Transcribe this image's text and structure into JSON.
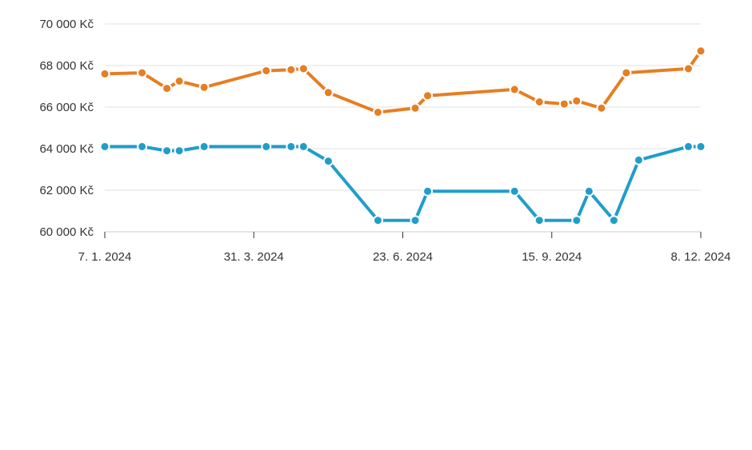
{
  "chart_data": {
    "type": "line",
    "title": "",
    "xlabel": "",
    "ylabel": "",
    "ylim": [
      60000,
      70000
    ],
    "y_ticks": [
      60000,
      62000,
      64000,
      66000,
      68000,
      70000
    ],
    "y_tick_labels": [
      "60 000 Kč",
      "62 000 Kč",
      "64 000 Kč",
      "66 000 Kč",
      "68 000 Kč",
      "70 000 Kč"
    ],
    "xlim": [
      "2024-01-07",
      "2024-12-08"
    ],
    "x_ticks": [
      "2024-01-07",
      "2024-03-31",
      "2024-06-23",
      "2024-09-15",
      "2024-12-08"
    ],
    "x_tick_labels": [
      "7. 1. 2024",
      "31. 3. 2024",
      "23. 6. 2024",
      "15. 9. 2024",
      "8. 12. 2024"
    ],
    "grid": true,
    "legend": "none",
    "series": [
      {
        "color": "#e67e22",
        "points": [
          {
            "x": "2024-01-07",
            "y": 67600
          },
          {
            "x": "2024-01-28",
            "y": 67650
          },
          {
            "x": "2024-02-11",
            "y": 66900
          },
          {
            "x": "2024-02-18",
            "y": 67250
          },
          {
            "x": "2024-03-03",
            "y": 66950
          },
          {
            "x": "2024-04-07",
            "y": 67750
          },
          {
            "x": "2024-04-21",
            "y": 67800
          },
          {
            "x": "2024-04-28",
            "y": 67850
          },
          {
            "x": "2024-05-12",
            "y": 66700
          },
          {
            "x": "2024-06-09",
            "y": 65750
          },
          {
            "x": "2024-06-30",
            "y": 65950
          },
          {
            "x": "2024-07-07",
            "y": 66550
          },
          {
            "x": "2024-08-25",
            "y": 66850
          },
          {
            "x": "2024-09-08",
            "y": 66250
          },
          {
            "x": "2024-09-22",
            "y": 66150
          },
          {
            "x": "2024-09-29",
            "y": 66300
          },
          {
            "x": "2024-10-13",
            "y": 65950
          },
          {
            "x": "2024-10-27",
            "y": 67650
          },
          {
            "x": "2024-12-01",
            "y": 67850
          },
          {
            "x": "2024-12-08",
            "y": 68700
          }
        ]
      },
      {
        "color": "#1f9ec9",
        "points": [
          {
            "x": "2024-01-07",
            "y": 64100
          },
          {
            "x": "2024-01-28",
            "y": 64100
          },
          {
            "x": "2024-02-11",
            "y": 63900
          },
          {
            "x": "2024-02-18",
            "y": 63900
          },
          {
            "x": "2024-03-03",
            "y": 64100
          },
          {
            "x": "2024-04-07",
            "y": 64100
          },
          {
            "x": "2024-04-21",
            "y": 64100
          },
          {
            "x": "2024-04-28",
            "y": 64100
          },
          {
            "x": "2024-05-12",
            "y": 63400
          },
          {
            "x": "2024-06-09",
            "y": 60550
          },
          {
            "x": "2024-06-30",
            "y": 60550
          },
          {
            "x": "2024-07-07",
            "y": 61950
          },
          {
            "x": "2024-08-25",
            "y": 61950
          },
          {
            "x": "2024-09-08",
            "y": 60550
          },
          {
            "x": "2024-09-29",
            "y": 60550
          },
          {
            "x": "2024-10-06",
            "y": 61950
          },
          {
            "x": "2024-10-20",
            "y": 60550
          },
          {
            "x": "2024-11-03",
            "y": 63450
          },
          {
            "x": "2024-12-01",
            "y": 64100
          },
          {
            "x": "2024-12-08",
            "y": 64100
          }
        ]
      }
    ]
  }
}
